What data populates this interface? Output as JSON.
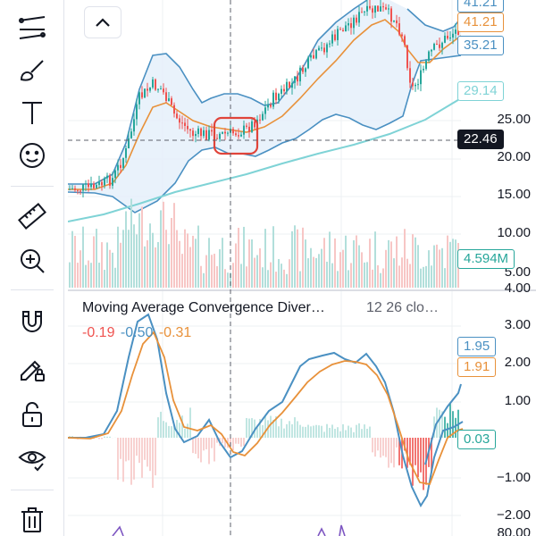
{
  "toolbar": {
    "items": [
      {
        "name": "trend-line-tools-icon"
      },
      {
        "name": "brush-icon"
      },
      {
        "name": "text-icon",
        "glyph": "T"
      },
      {
        "name": "emoji-icon"
      },
      {
        "name": "ruler-icon"
      },
      {
        "name": "zoom-in-icon"
      },
      {
        "name": "magnet-icon"
      },
      {
        "name": "lock-drawing-pencil-icon"
      },
      {
        "name": "lock-icon"
      },
      {
        "name": "eye-icon"
      },
      {
        "name": "trash-icon"
      }
    ]
  },
  "price_axis": {
    "ticks": [
      "25.00",
      "20.00",
      "15.00",
      "10.00",
      "5.00",
      "4.00"
    ],
    "labels": {
      "upper_band": "41.21",
      "close": "41.21",
      "lower_band": "35.21",
      "ma_slow": "29.14",
      "crosshair": "22.46",
      "volume": "4.594M"
    }
  },
  "macd": {
    "title": "Moving Average Convergence Diver…",
    "params": "12 26 clo…",
    "values": {
      "histogram": "-0.19",
      "macd": "-0.50",
      "signal": "-0.31"
    },
    "axis_ticks": [
      "3.00",
      "2.00",
      "1.00",
      "−1.00",
      "−2.00",
      "80.00"
    ],
    "labels": {
      "macd": "1.95",
      "signal": "1.91",
      "hist": "0.03"
    }
  },
  "colors": {
    "up": "#26a69a",
    "down": "#ef5350",
    "band": "#4a90c2",
    "ma_fast": "#e8913a",
    "ma_slow": "#7fd3d6",
    "macd_line": "#4a90c2",
    "signal_line": "#e8913a",
    "crosshair_bg": "#131722",
    "highlight": "#e0443a"
  }
}
